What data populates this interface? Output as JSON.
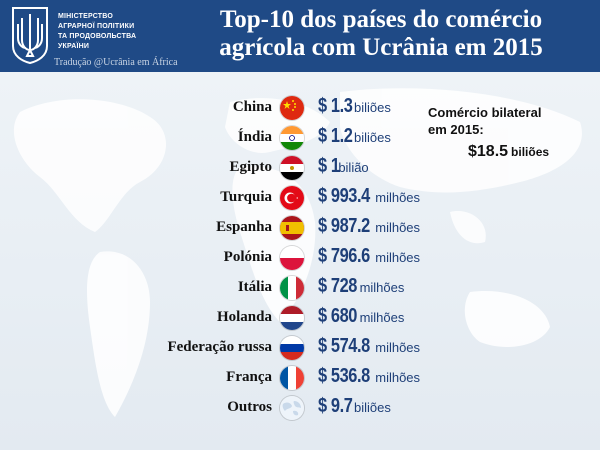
{
  "header": {
    "ministry_lines": [
      "МІНІСТЕРСТВО",
      "АГРАРНОЇ ПОЛІТИКИ",
      "ТА ПРОДОВОЛЬСТВА",
      "УКРАЇНИ"
    ],
    "title_line1": "Top-10 dos países do comércio",
    "title_line2": "agrícola com Ucrânia em 2015",
    "translation": "Tradução @Ucrânia em África",
    "background_color": "#1f4a86"
  },
  "countries": [
    {
      "name": "China",
      "amount": "$ 1.3",
      "unit": "biliões",
      "flag_icon": "china-flag-icon"
    },
    {
      "name": "Índia",
      "amount": "$ 1.2",
      "unit": "biliões",
      "flag_icon": "india-flag-icon"
    },
    {
      "name": "Egipto",
      "amount": "$ 1",
      "unit": "bilião",
      "flag_icon": "egypt-flag-icon"
    },
    {
      "name": "Turquia",
      "amount": "$ 993.4",
      "unit": "milhões",
      "flag_icon": "turkey-flag-icon"
    },
    {
      "name": "Espanha",
      "amount": "$ 987.2",
      "unit": "milhões",
      "flag_icon": "spain-flag-icon"
    },
    {
      "name": "Polónia",
      "amount": "$ 796.6",
      "unit": "milhões",
      "flag_icon": "poland-flag-icon"
    },
    {
      "name": "Itália",
      "amount": "$ 728",
      "unit": "milhões",
      "flag_icon": "italy-flag-icon"
    },
    {
      "name": "Holanda",
      "amount": "$ 680",
      "unit": "milhões",
      "flag_icon": "netherlands-flag-icon"
    },
    {
      "name": "Federação russa",
      "amount": "$ 574.8",
      "unit": "milhões",
      "flag_icon": "russia-flag-icon"
    },
    {
      "name": "França",
      "amount": "$ 536.8",
      "unit": "milhões",
      "flag_icon": "france-flag-icon"
    },
    {
      "name": "Outros",
      "amount": "$ 9.7",
      "unit": "biliões",
      "flag_icon": "globe-icon"
    }
  ],
  "bilateral": {
    "label_line1": "Comércio bilateral",
    "label_line2": "em 2015:",
    "amount": "$18.5",
    "unit": "biliões"
  },
  "colors": {
    "value_text": "#1e3f78",
    "map_background": "#e9eef3"
  }
}
